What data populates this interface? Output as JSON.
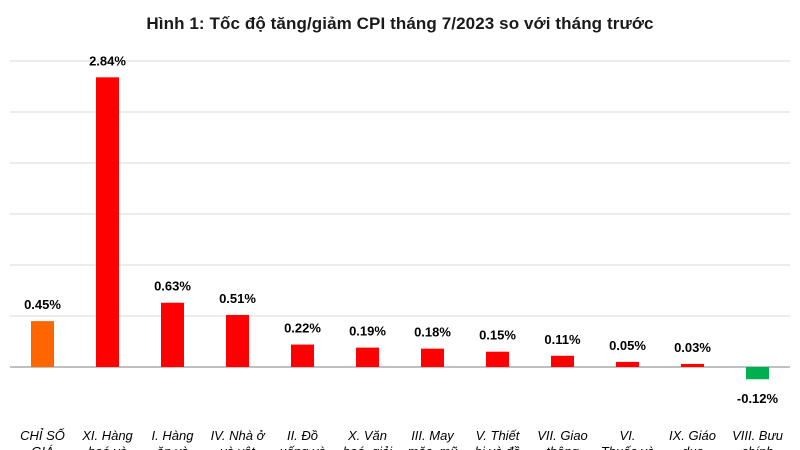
{
  "chart_data": {
    "type": "bar",
    "title": "Hình 1: Tốc độ tăng/giảm CPI tháng 7/2023 so với tháng trước",
    "xlabel": "",
    "ylabel": "",
    "unit": "%",
    "ylim": [
      -0.3,
      3.0
    ],
    "grid": true,
    "legend": "none",
    "categories": [
      "CHỈ SỐ GIÁ",
      "XI. Hàng hoá và",
      "I. Hàng ăn và",
      "IV. Nhà ở và vật",
      "II. Đồ uống và",
      "X. Văn hoá, giải",
      "III. May mặc, mũ",
      "V. Thiết bị và đồ",
      "VII. Giao thông",
      "VI. Thuốc và",
      "IX. Giáo dục",
      "VIII. Bưu chính"
    ],
    "category_lines": [
      [
        "CHỈ SỐ",
        "GIÁ"
      ],
      [
        "XI. Hàng",
        "hoá và"
      ],
      [
        "I. Hàng",
        "ăn và"
      ],
      [
        "IV. Nhà ở",
        "và vật"
      ],
      [
        "II. Đồ",
        "uống và"
      ],
      [
        "X. Văn",
        "hoá, giải"
      ],
      [
        "III. May",
        "mặc, mũ"
      ],
      [
        "V. Thiết",
        "bị và đồ"
      ],
      [
        "VII. Giao",
        "thông"
      ],
      [
        "VI.",
        "Thuốc và"
      ],
      [
        "IX. Giáo",
        "dục"
      ],
      [
        "VIII. Bưu",
        "chính"
      ]
    ],
    "values": [
      0.45,
      2.84,
      0.63,
      0.51,
      0.22,
      0.19,
      0.18,
      0.15,
      0.11,
      0.05,
      0.03,
      -0.12
    ],
    "labels": [
      "0.45%",
      "2.84%",
      "0.63%",
      "0.51%",
      "0.22%",
      "0.19%",
      "0.18%",
      "0.15%",
      "0.11%",
      "0.05%",
      "0.03%",
      "-0.12%"
    ],
    "colors": [
      "#ff6600",
      "#ff0000",
      "#ff0000",
      "#ff0000",
      "#ff0000",
      "#ff0000",
      "#ff0000",
      "#ff0000",
      "#ff0000",
      "#ff0000",
      "#ff0000",
      "#00b050"
    ]
  }
}
